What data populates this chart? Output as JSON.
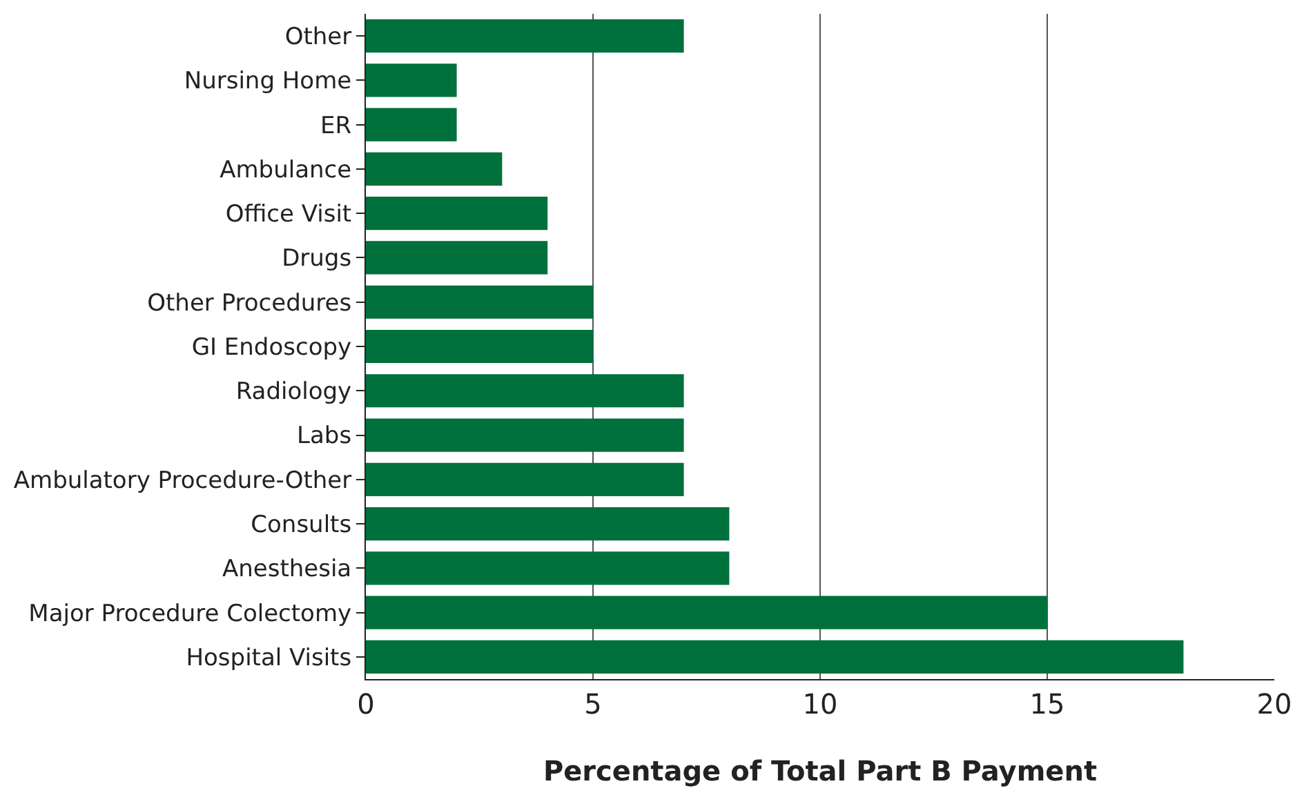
{
  "chart_data": {
    "type": "bar",
    "orientation": "horizontal",
    "xlabel": "Percentage of Total Part B Payment",
    "categories": [
      "Other",
      "Nursing Home",
      "ER",
      "Ambulance",
      "Office Visit",
      "Drugs",
      "Other Procedures",
      "GI Endoscopy",
      "Radiology",
      "Labs",
      "Ambulatory Procedure-Other",
      "Consults",
      "Anesthesia",
      "Major Procedure Colectomy",
      "Hospital Visits"
    ],
    "values": [
      7,
      2,
      2,
      3,
      4,
      4,
      5,
      5,
      7,
      7,
      7,
      8,
      8,
      15,
      18
    ],
    "color": "#00703c",
    "xlim": [
      0,
      20
    ],
    "xticks": [
      0,
      5,
      10,
      15,
      20
    ],
    "grid": "x",
    "legend": false
  }
}
